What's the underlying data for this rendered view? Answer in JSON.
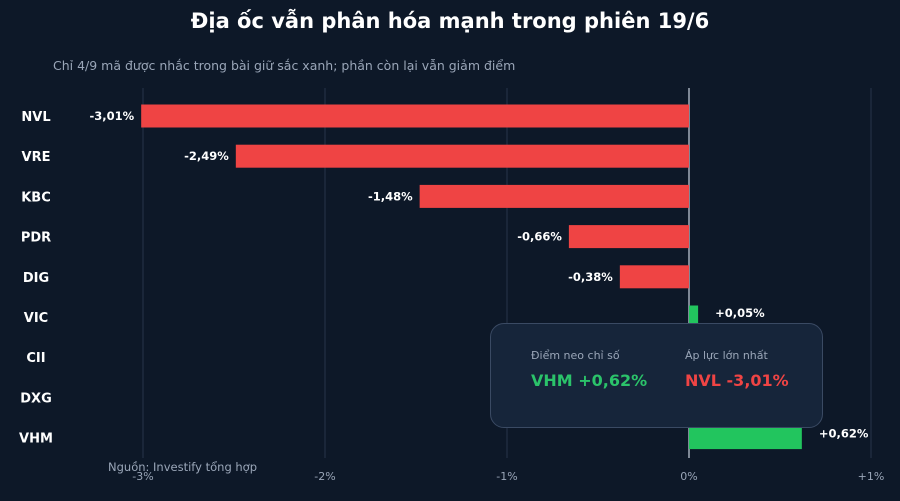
{
  "title": "Địa ốc vẫn phân hóa mạnh trong phiên 19/6",
  "subtitle": "Chỉ 4/9 mã được nhắc trong bài giữ sắc xanh; phần còn lại vẫn giảm điểm",
  "source": "Nguồn: Investify tổng hợp",
  "colors": {
    "negative": "#ef4444",
    "positive": "#22c55e",
    "background": "#0d1828",
    "grid": "#26344a"
  },
  "callout": {
    "anchor_label": "Điểm neo chỉ số",
    "anchor_value": "VHM +0,62%",
    "pressure_label": "Áp lực lớn nhất",
    "pressure_value": "NVL -3,01%"
  },
  "chart_data": {
    "type": "bar",
    "orientation": "horizontal",
    "categories": [
      "NVL",
      "VRE",
      "KBC",
      "PDR",
      "DIG",
      "VIC",
      "CII",
      "DXG",
      "VHM"
    ],
    "values": [
      -3.01,
      -2.49,
      -1.48,
      -0.66,
      -0.38,
      0.05,
      null,
      null,
      0.62
    ],
    "data_labels": [
      "-3,01%",
      "-2,49%",
      "-1,48%",
      "-0,66%",
      "-0,38%",
      "+0,05%",
      "",
      "",
      "+0,62%"
    ],
    "x_ticks": [
      -3,
      -2,
      -1,
      0,
      1
    ],
    "x_tick_labels": [
      "-3%",
      "-2%",
      "-1%",
      "0%",
      "+1%"
    ],
    "xlim": [
      -3,
      1
    ],
    "grid": true
  }
}
